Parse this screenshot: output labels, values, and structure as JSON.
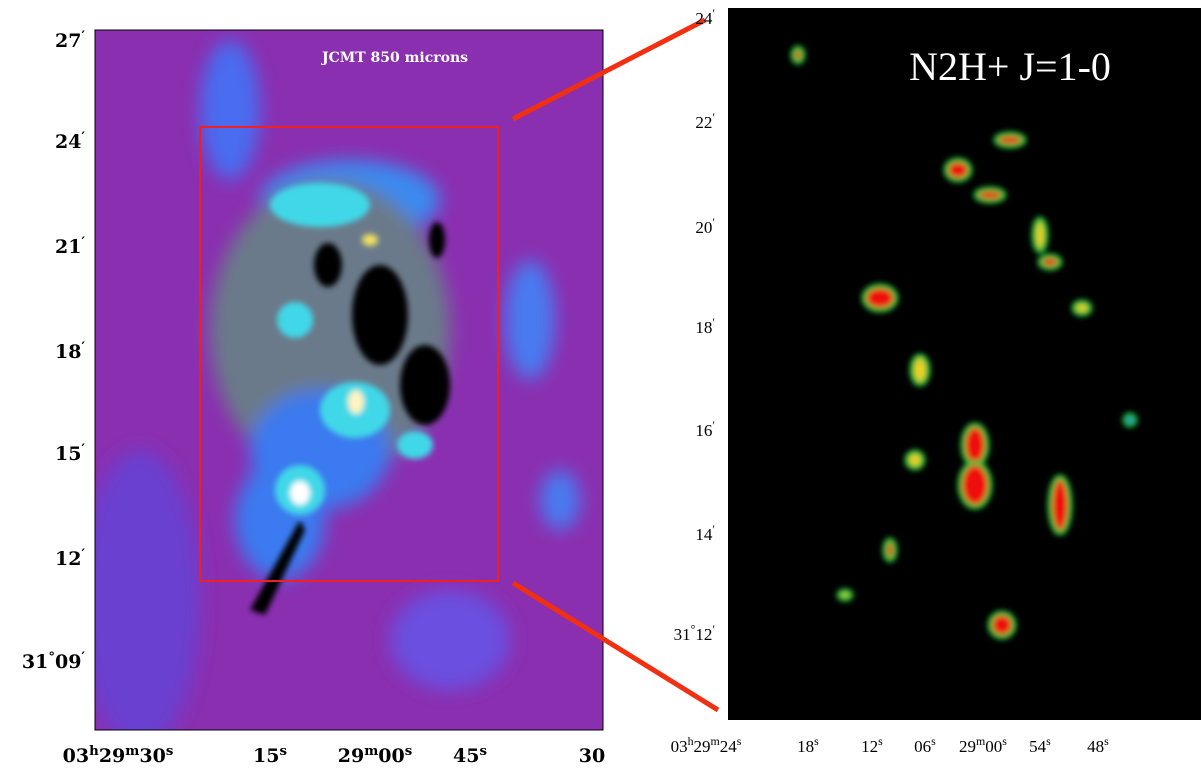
{
  "left_panel": {
    "title": "JCMT 850 microns",
    "y_labels": [
      "27′",
      "24′",
      "21′",
      "18′",
      "15′",
      "12′",
      "31°09′"
    ],
    "x_labels": [
      "03h29m30s",
      "15s",
      "29m00s",
      "45s",
      "30"
    ]
  },
  "right_panel": {
    "title": "N2H+ J=1-0",
    "y_labels": [
      "24′",
      "22′",
      "20′",
      "18′",
      "16′",
      "14′",
      "31°12′"
    ],
    "x_labels": [
      "03h29m24s",
      "18s",
      "12s",
      "06s",
      "29m00s",
      "54s",
      "48s"
    ]
  }
}
